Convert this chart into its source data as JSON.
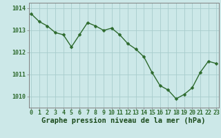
{
  "x": [
    0,
    1,
    2,
    3,
    4,
    5,
    6,
    7,
    8,
    9,
    10,
    11,
    12,
    13,
    14,
    15,
    16,
    17,
    18,
    19,
    20,
    21,
    22,
    23
  ],
  "y": [
    1013.75,
    1013.4,
    1013.2,
    1012.9,
    1012.8,
    1012.25,
    1012.8,
    1013.35,
    1013.2,
    1013.0,
    1013.1,
    1012.8,
    1012.4,
    1012.15,
    1011.8,
    1011.1,
    1010.5,
    1010.3,
    1009.9,
    1010.1,
    1010.4,
    1011.1,
    1011.6,
    1011.5
  ],
  "line_color": "#2d6a2d",
  "marker": "D",
  "marker_size": 2.5,
  "line_width": 1.0,
  "bg_color": "#cce8e8",
  "grid_color": "#a8cccc",
  "xlabel": "Graphe pression niveau de la mer (hPa)",
  "xlabel_color": "#1a4a1a",
  "xlabel_fontsize": 7.5,
  "tick_color": "#2d6a2d",
  "tick_fontsize": 6,
  "ylim": [
    1009.5,
    1014.25
  ],
  "yticks": [
    1010,
    1011,
    1012,
    1013,
    1014
  ],
  "xticks": [
    0,
    1,
    2,
    3,
    4,
    5,
    6,
    7,
    8,
    9,
    10,
    11,
    12,
    13,
    14,
    15,
    16,
    17,
    18,
    19,
    20,
    21,
    22,
    23
  ],
  "xlim": [
    -0.3,
    23.3
  ],
  "spine_color": "#808080"
}
